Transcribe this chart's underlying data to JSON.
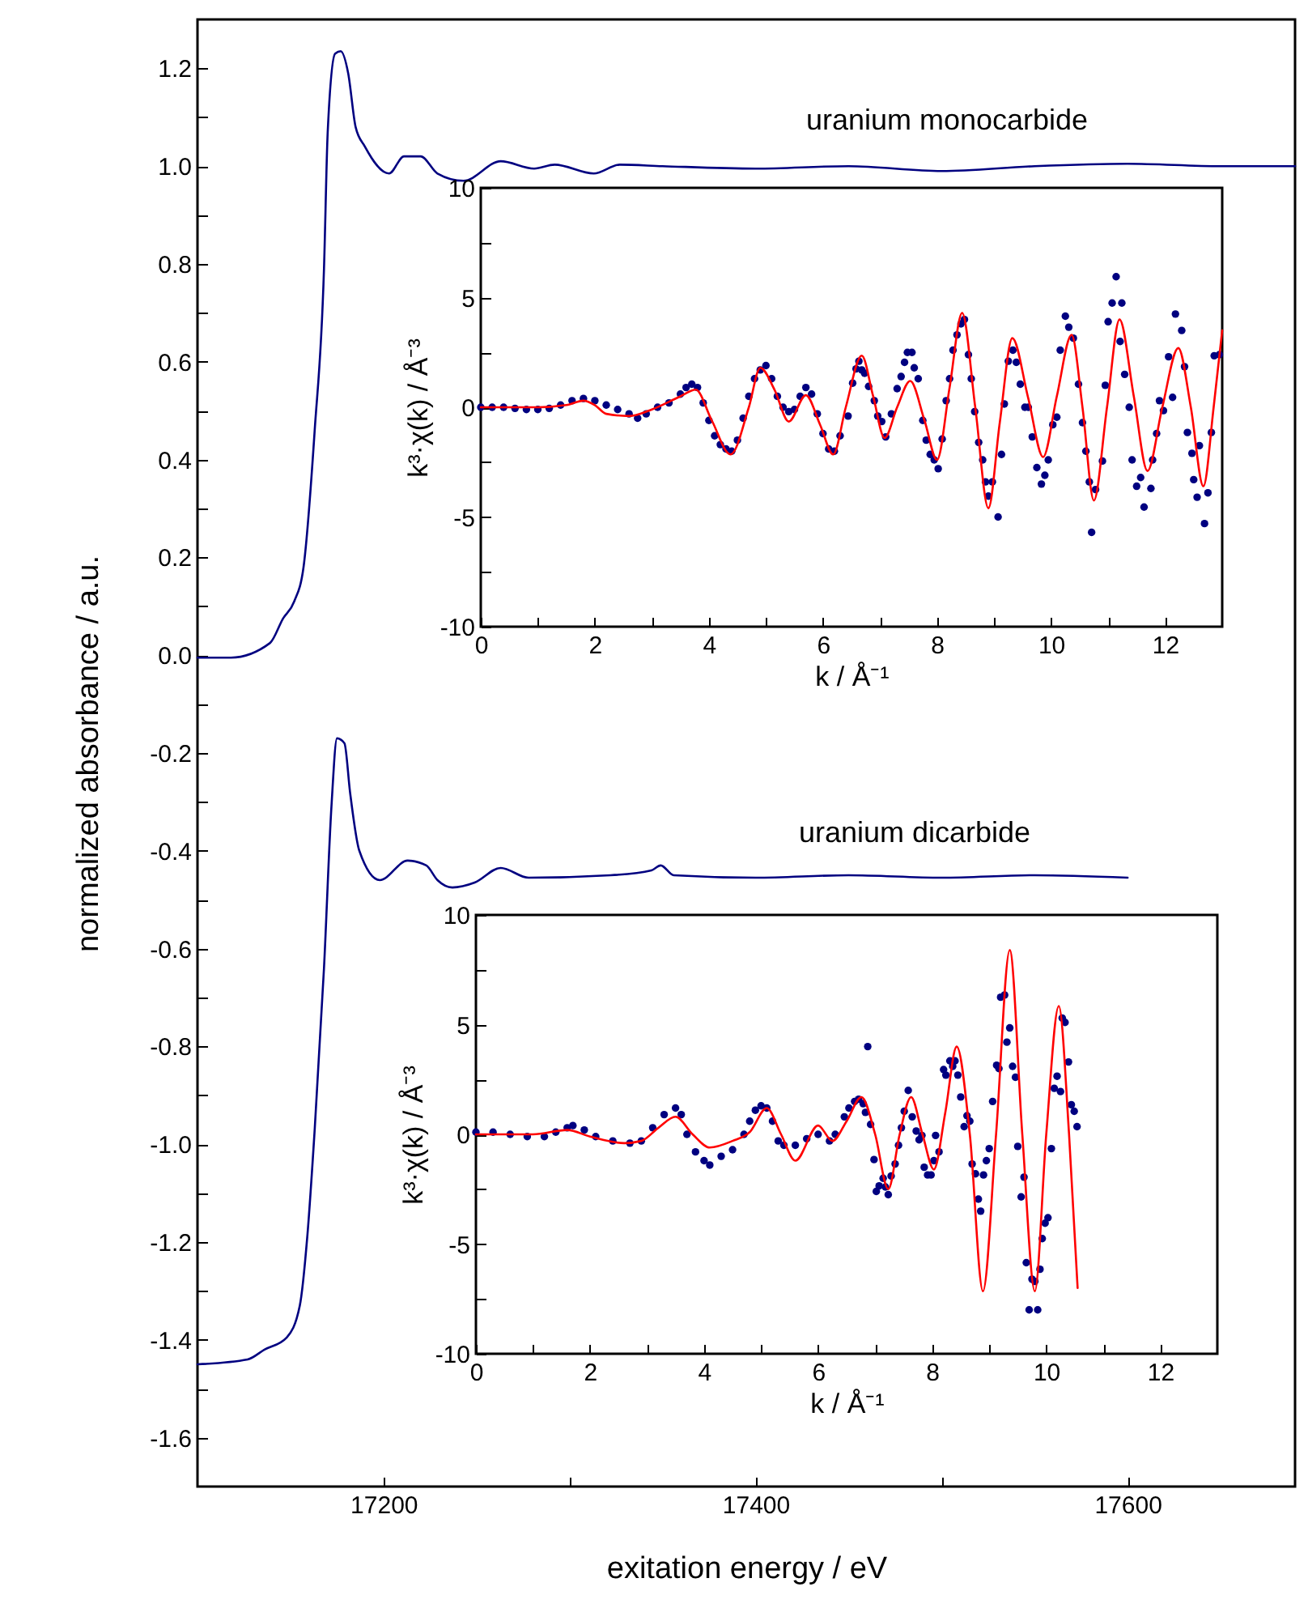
{
  "chart_data": [
    {
      "type": "line",
      "xlabel": "exitation energy / eV",
      "ylabel": "normalized absorbance / a.u.",
      "xlim": [
        17100,
        17690
      ],
      "xticks": [
        17200,
        {
          "value": 17300,
          "label": null
        },
        17400,
        {
          "value": 17500,
          "label": null
        },
        17600
      ],
      "ylim": [
        -1.7,
        1.3
      ],
      "yticks": [
        -1.6,
        {
          "value": -1.5,
          "label": null
        },
        -1.4,
        {
          "value": -1.3,
          "label": null
        },
        -1.2,
        {
          "value": -1.1,
          "label": null
        },
        {
          "value": -1.0,
          "label": "-1.0"
        },
        {
          "value": -0.9,
          "label": null
        },
        -0.8,
        {
          "value": -0.7,
          "label": null
        },
        -0.6,
        {
          "value": -0.5,
          "label": null
        },
        -0.4,
        {
          "value": -0.3,
          "label": null
        },
        -0.2,
        {
          "value": -0.1,
          "label": null
        },
        {
          "value": 0,
          "label": "0.0"
        },
        {
          "value": 0.1,
          "label": null
        },
        0.2,
        {
          "value": 0.3,
          "label": null
        },
        0.4,
        {
          "value": 0.5,
          "label": null
        },
        0.6,
        {
          "value": 0.7,
          "label": null
        },
        0.8,
        {
          "value": 0.9,
          "label": null
        },
        {
          "value": 1.0,
          "label": "1.0"
        },
        {
          "value": 1.1,
          "label": null
        },
        1.2
      ],
      "line_style": "solid",
      "marker": "none",
      "series": [
        {
          "name": "uranium monocarbide",
          "color": "#000080",
          "x": [
            17100,
            17118,
            17139,
            17146,
            17152,
            17157,
            17163,
            17168,
            17170,
            17174,
            17177,
            17181,
            17185,
            17190,
            17203,
            17211,
            17220,
            17229,
            17243,
            17263,
            17281,
            17292,
            17313,
            17327,
            17350,
            17400,
            17450,
            17500,
            17550,
            17600,
            17650,
            17690
          ],
          "values": [
            -0.005,
            -0.005,
            0.025,
            0.075,
            0.11,
            0.18,
            0.46,
            0.79,
            1.07,
            1.23,
            1.235,
            1.19,
            1.08,
            1.04,
            0.985,
            1.02,
            1.02,
            0.985,
            0.97,
            1.01,
            0.995,
            1.003,
            0.985,
            1.003,
            1.0,
            0.995,
            1.0,
            0.99,
            1.0,
            1.005,
            1.0,
            1.0
          ]
        },
        {
          "name": "uranium dicarbide",
          "color": "#000080",
          "x": [
            17100,
            17127,
            17136,
            17148,
            17155,
            17159,
            17163,
            17168,
            17172,
            17175,
            17179,
            17182,
            17187,
            17198,
            17213,
            17223,
            17229,
            17237,
            17249,
            17263,
            17278,
            17322,
            17344,
            17349,
            17356,
            17400,
            17450,
            17500,
            17550,
            17600
          ],
          "values": [
            -1.45,
            -1.44,
            -1.42,
            -1.395,
            -1.33,
            -1.19,
            -0.97,
            -0.64,
            -0.31,
            -0.17,
            -0.18,
            -0.28,
            -0.4,
            -0.46,
            -0.42,
            -0.43,
            -0.46,
            -0.475,
            -0.465,
            -0.435,
            -0.455,
            -0.45,
            -0.44,
            -0.43,
            -0.45,
            -0.455,
            -0.45,
            -0.455,
            -0.45,
            -0.455
          ]
        }
      ]
    },
    {
      "type": "line",
      "xlabel": "k / Å⁻¹",
      "ylabel": "k³·χ(k) / Å⁻³",
      "xlim": [
        0,
        13
      ],
      "xticks": [
        0,
        {
          "value": 1,
          "label": null
        },
        2,
        {
          "value": 3,
          "label": null
        },
        4,
        {
          "value": 5,
          "label": null
        },
        6,
        {
          "value": 7,
          "label": null
        },
        8,
        {
          "value": 9,
          "label": null
        },
        10,
        {
          "value": 11,
          "label": null
        },
        12
      ],
      "ylim": [
        -10,
        10
      ],
      "yticks": [
        -10,
        {
          "value": -7.5,
          "label": null
        },
        -5,
        {
          "value": -2.5,
          "label": null
        },
        0,
        {
          "value": 2.5,
          "label": null
        },
        5,
        {
          "value": 7.5,
          "label": null
        },
        10
      ],
      "series": [
        {
          "type": "scatter",
          "marker": "circle",
          "color": "#000080",
          "x": [
            0,
            0.2,
            0.4,
            0.6,
            0.8,
            1.0,
            1.2,
            1.4,
            1.6,
            1.8,
            2.0,
            2.2,
            2.4,
            2.6,
            2.75,
            2.9,
            3.1,
            3.3,
            3.5,
            3.6,
            3.7,
            3.8,
            3.9,
            4.0,
            4.1,
            4.2,
            4.3,
            4.4,
            4.5,
            4.6,
            4.7,
            4.8,
            4.9,
            5.0,
            5.1,
            5.2,
            5.3,
            5.4,
            5.5,
            5.6,
            5.7,
            5.8,
            5.9,
            6.0,
            6.1,
            6.2,
            6.3,
            6.44,
            6.52,
            6.58,
            6.63,
            6.68,
            6.73,
            6.8,
            6.9,
            6.96,
            7.03,
            7.1,
            7.2,
            7.3,
            7.37,
            7.43,
            7.48,
            7.56,
            7.6,
            7.67,
            7.75,
            7.81,
            7.88,
            7.95,
            8.02,
            8.09,
            8.16,
            8.22,
            8.28,
            8.35,
            8.42,
            8.48,
            8.55,
            8.6,
            8.66,
            8.73,
            8.8,
            8.85,
            8.9,
            8.97,
            9.07,
            9.13,
            9.18,
            9.25,
            9.33,
            9.39,
            9.46,
            9.54,
            9.6,
            9.67,
            9.75,
            9.83,
            9.89,
            9.95,
            10.03,
            10.1,
            10.16,
            10.25,
            10.31,
            10.39,
            10.48,
            10.55,
            10.61,
            10.67,
            10.71,
            10.78,
            10.9,
            10.95,
            11.0,
            11.07,
            11.14,
            11.21,
            11.24,
            11.29,
            11.37,
            11.42,
            11.5,
            11.57,
            11.63,
            11.75,
            11.78,
            11.85,
            11.9,
            11.97,
            12.06,
            12.13,
            12.18,
            12.29,
            12.34,
            12.39,
            12.47,
            12.5,
            12.56,
            12.6,
            12.69,
            12.75,
            12.81,
            12.86,
            12.95
          ],
          "values": [
            0,
            0,
            0,
            -0.05,
            -0.1,
            -0.1,
            -0.05,
            0.1,
            0.3,
            0.4,
            0.3,
            0.1,
            -0.1,
            -0.3,
            -0.5,
            -0.3,
            0,
            0.2,
            0.6,
            0.9,
            1.05,
            0.9,
            0.2,
            -0.6,
            -1.3,
            -1.7,
            -1.9,
            -2.0,
            -1.5,
            -0.5,
            0.5,
            1.3,
            1.7,
            1.9,
            1.3,
            0.5,
            0,
            -0.2,
            -0.1,
            0.5,
            0.9,
            0.6,
            -0.3,
            -1.2,
            -1.9,
            -2.0,
            -1.3,
            -0.4,
            1.1,
            1.75,
            2.1,
            1.7,
            1.55,
            0.95,
            0.3,
            -0.4,
            -0.65,
            -1.35,
            -0.3,
            0.85,
            1.4,
            2.05,
            2.5,
            2.5,
            1.8,
            1.3,
            -0.6,
            -1.5,
            -2.15,
            -2.4,
            -2.8,
            -1.45,
            0.3,
            1.3,
            2.6,
            3.3,
            3.8,
            4.0,
            2.4,
            1.3,
            -0.2,
            -1.6,
            -2.4,
            -3.4,
            -4.05,
            -3.4,
            -5.0,
            -2.15,
            0.15,
            2.1,
            2.6,
            2.05,
            1.05,
            0,
            0,
            -1.35,
            -2.75,
            -3.5,
            -3.1,
            -2.4,
            -0.8,
            -0.45,
            2.6,
            4.15,
            3.65,
            3.15,
            1.05,
            -0.7,
            -2.0,
            -3.4,
            -5.7,
            -3.75,
            -2.45,
            1.0,
            3.9,
            4.75,
            5.95,
            3.0,
            4.75,
            1.5,
            0,
            -2.4,
            -3.6,
            -3.2,
            -4.55,
            -3.7,
            -2.4,
            -1.2,
            0.3,
            -0.15,
            2.3,
            0.45,
            4.25,
            3.5,
            1.85,
            -1.15,
            -2.1,
            -3.3,
            -4.1,
            -1.75,
            -5.3,
            -3.9,
            -1.15,
            2.35,
            2.4
          ]
        },
        {
          "color": "#ff0000",
          "x": [
            0,
            1.0,
            1.5,
            1.8,
            2.0,
            2.2,
            2.6,
            3.0,
            3.5,
            3.77,
            4.05,
            4.38,
            4.7,
            4.9,
            5.15,
            5.4,
            5.7,
            5.95,
            6.18,
            6.4,
            6.68,
            6.88,
            7.08,
            7.3,
            7.53,
            7.78,
            8.0,
            8.22,
            8.44,
            8.67,
            8.9,
            9.1,
            9.32,
            9.6,
            9.86,
            10.1,
            10.36,
            10.55,
            10.75,
            10.98,
            11.2,
            11.45,
            11.69,
            11.95,
            12.23,
            12.45,
            12.67,
            12.85,
            13.0
          ],
          "values": [
            0,
            0,
            0.1,
            0.3,
            0.1,
            -0.3,
            -0.4,
            -0.1,
            0.5,
            0.8,
            -0.6,
            -2.15,
            0,
            1.8,
            0.8,
            -0.65,
            0.55,
            -0.8,
            -2.15,
            0,
            2.35,
            0.5,
            -1.4,
            0,
            1.2,
            -0.6,
            -2.4,
            0.9,
            4.3,
            0,
            -4.6,
            -0.7,
            3.15,
            0.4,
            -2.27,
            0.5,
            3.3,
            0,
            -4.25,
            0,
            4.0,
            0.5,
            -2.9,
            0,
            2.7,
            0,
            -3.6,
            0,
            3.5
          ]
        }
      ]
    },
    {
      "type": "line",
      "xlabel": "k / Å⁻¹",
      "ylabel": "k³·χ(k) / Å⁻³",
      "xlim": [
        0,
        13
      ],
      "xticks": [
        0,
        {
          "value": 1,
          "label": null
        },
        2,
        {
          "value": 3,
          "label": null
        },
        4,
        {
          "value": 5,
          "label": null
        },
        6,
        {
          "value": 7,
          "label": null
        },
        8,
        {
          "value": 9,
          "label": null
        },
        10,
        {
          "value": 11,
          "label": null
        },
        12
      ],
      "ylim": [
        -10,
        10
      ],
      "yticks": [
        -10,
        {
          "value": -7.5,
          "label": null
        },
        -5,
        {
          "value": -2.5,
          "label": null
        },
        0,
        {
          "value": 2.5,
          "label": null
        },
        5,
        {
          "value": 7.5,
          "label": null
        },
        10
      ],
      "series": [
        {
          "type": "scatter",
          "marker": "circle",
          "color": "#000080",
          "x": [
            0,
            0.3,
            0.6,
            0.9,
            1.2,
            1.4,
            1.6,
            1.7,
            1.9,
            2.1,
            2.4,
            2.7,
            2.9,
            3.1,
            3.3,
            3.5,
            3.6,
            3.7,
            3.85,
            4.0,
            4.1,
            4.3,
            4.5,
            4.7,
            4.8,
            4.9,
            5.0,
            5.1,
            5.2,
            5.3,
            5.4,
            5.6,
            5.8,
            6.0,
            6.2,
            6.3,
            6.46,
            6.54,
            6.64,
            6.71,
            6.79,
            6.83,
            6.87,
            6.92,
            6.98,
            7.02,
            7.07,
            7.14,
            7.18,
            7.23,
            7.28,
            7.35,
            7.41,
            7.46,
            7.51,
            7.58,
            7.65,
            7.72,
            7.77,
            7.82,
            7.86,
            7.92,
            7.98,
            8.03,
            8.06,
            8.12,
            8.2,
            8.24,
            8.31,
            8.36,
            8.4,
            8.45,
            8.5,
            8.56,
            8.61,
            8.66,
            8.7,
            8.76,
            8.81,
            8.85,
            8.9,
            8.95,
            9.0,
            9.06,
            9.13,
            9.17,
            9.2,
            9.27,
            9.31,
            9.36,
            9.41,
            9.46,
            9.5,
            9.56,
            9.61,
            9.65,
            9.7,
            9.75,
            9.8,
            9.85,
            9.89,
            9.93,
            9.98,
            10.03,
            10.09,
            10.14,
            10.19,
            10.25,
            10.28,
            10.33,
            10.39,
            10.44,
            10.49,
            10.54
          ],
          "values": [
            0.1,
            0.1,
            0,
            -0.1,
            -0.1,
            0.1,
            0.3,
            0.4,
            0.2,
            -0.1,
            -0.3,
            -0.4,
            -0.3,
            0.3,
            0.9,
            1.2,
            0.9,
            0,
            -0.8,
            -1.2,
            -1.4,
            -1.0,
            -0.7,
            0,
            0.6,
            1.1,
            1.3,
            1.2,
            0.6,
            -0.3,
            -0.5,
            -0.5,
            -0.2,
            0,
            -0.3,
            0,
            0.8,
            1.2,
            1.5,
            1.6,
            1.4,
            1.0,
            4.0,
            0.45,
            -1.15,
            -2.6,
            -2.35,
            -2.0,
            -2.4,
            -2.75,
            -1.9,
            -1.35,
            -0.5,
            0.3,
            1.05,
            2.0,
            0.8,
            0.15,
            -0.25,
            -0.05,
            -1.5,
            -1.85,
            -1.85,
            -1.2,
            -0.05,
            -0.8,
            2.95,
            2.7,
            3.35,
            3.1,
            3.35,
            2.7,
            1.7,
            0.35,
            0.85,
            0.6,
            -1.35,
            -1.8,
            -2.95,
            -3.5,
            -1.85,
            -1.2,
            -0.65,
            1.5,
            3.15,
            3.0,
            6.25,
            6.35,
            4.2,
            4.85,
            3.1,
            2.6,
            -0.55,
            -2.85,
            -1.95,
            -5.85,
            -8.0,
            -6.6,
            -6.7,
            -8.0,
            -6.15,
            -4.75,
            -4.05,
            -3.8,
            -0.65,
            2.1,
            2.65,
            1.95,
            5.3,
            5.1,
            3.3,
            1.35,
            1.05,
            0.35
          ]
        },
        {
          "color": "#ff0000",
          "x": [
            0,
            1.0,
            1.6,
            2.0,
            2.6,
            2.9,
            3.2,
            3.5,
            3.8,
            4.1,
            4.5,
            4.8,
            5.1,
            5.35,
            5.6,
            6.0,
            6.25,
            6.5,
            6.76,
            7.0,
            7.23,
            7.43,
            7.63,
            7.83,
            8.03,
            8.23,
            8.43,
            8.66,
            8.89,
            9.12,
            9.36,
            9.58,
            9.8,
            10.0,
            10.22,
            10.4,
            10.55
          ],
          "values": [
            0,
            0,
            0.2,
            -0.1,
            -0.4,
            -0.3,
            0.3,
            0.8,
            0,
            -0.6,
            -0.3,
            0.1,
            1.2,
            0,
            -1.2,
            0.4,
            -0.3,
            0.6,
            1.7,
            0,
            -2.5,
            0,
            1.7,
            0,
            -1.6,
            1.0,
            4.0,
            0,
            -7.15,
            0,
            8.4,
            0,
            -7.15,
            0,
            5.85,
            0,
            -7.0
          ]
        }
      ]
    }
  ]
}
